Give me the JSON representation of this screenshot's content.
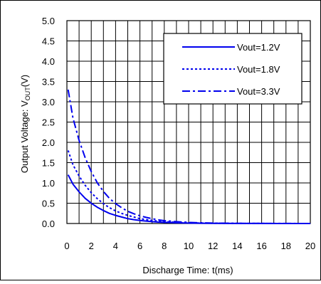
{
  "chart_data": {
    "type": "line",
    "xlabel": "Discharge Time: t(ms)",
    "ylabel_main": "Output Voltage: V",
    "ylabel_sub": "OUT",
    "ylabel_tail": "(V)",
    "xlim": [
      0,
      20
    ],
    "ylim": [
      0,
      5
    ],
    "xticks": [
      "0",
      "2",
      "4",
      "6",
      "8",
      "10",
      "12",
      "14",
      "16",
      "18",
      "20"
    ],
    "yticks": [
      "0.0",
      "0.5",
      "1.0",
      "1.5",
      "2.0",
      "2.5",
      "3.0",
      "3.5",
      "4.0",
      "4.5",
      "5.0"
    ],
    "grid": true,
    "legend_position": "top-right",
    "x": [
      0.1,
      0.5,
      1,
      1.5,
      2,
      2.5,
      3,
      3.5,
      4,
      4.5,
      5,
      5.5,
      6,
      6.5,
      7,
      7.5,
      8,
      9,
      10,
      11,
      12,
      14,
      16,
      18,
      20
    ],
    "series": [
      {
        "name": "Vout=1.2V",
        "color": "#0000ee",
        "style": "solid",
        "values": [
          1.2,
          0.97,
          0.78,
          0.62,
          0.5,
          0.4,
          0.32,
          0.25,
          0.2,
          0.16,
          0.12,
          0.095,
          0.075,
          0.06,
          0.045,
          0.035,
          0.028,
          0.017,
          0.011,
          0.007,
          0.004,
          0.002,
          0.001,
          0.0,
          0.0
        ]
      },
      {
        "name": "Vout=1.8V",
        "color": "#0000ee",
        "style": "dotted",
        "values": [
          1.8,
          1.45,
          1.17,
          0.94,
          0.76,
          0.61,
          0.49,
          0.39,
          0.31,
          0.25,
          0.2,
          0.16,
          0.12,
          0.095,
          0.075,
          0.06,
          0.045,
          0.028,
          0.017,
          0.011,
          0.007,
          0.003,
          0.001,
          0.0,
          0.0
        ]
      },
      {
        "name": "Vout=3.3V",
        "color": "#0000ee",
        "style": "dashdot",
        "values": [
          3.3,
          2.6,
          2.05,
          1.62,
          1.28,
          1.0,
          0.79,
          0.62,
          0.49,
          0.39,
          0.3,
          0.24,
          0.19,
          0.15,
          0.12,
          0.09,
          0.07,
          0.045,
          0.028,
          0.018,
          0.011,
          0.004,
          0.002,
          0.001,
          0.0
        ]
      }
    ]
  }
}
